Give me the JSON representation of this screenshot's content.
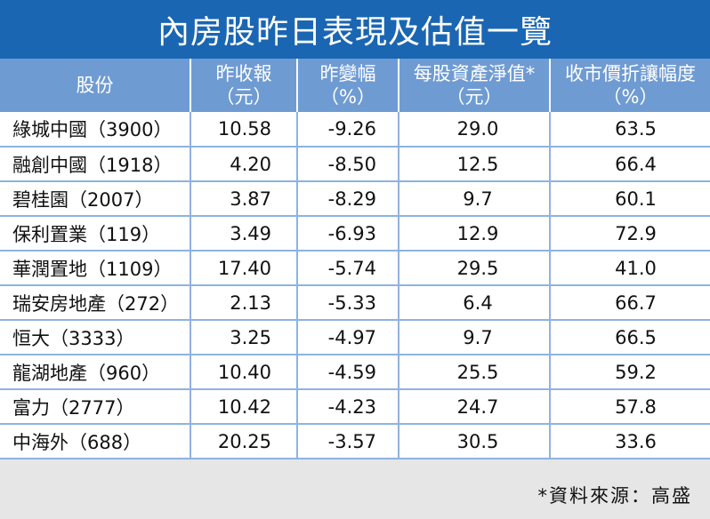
{
  "title": "內房股昨日表現及估值一覽",
  "headers": [
    {
      "line1": "股份",
      "line2": ""
    },
    {
      "line1": "昨收報",
      "line2": "（元）"
    },
    {
      "line1": "昨變幅",
      "line2": "（%）"
    },
    {
      "line1": "每股資產淨值*",
      "line2": "（元）"
    },
    {
      "line1": "收市價折讓幅度",
      "line2": "（%）"
    }
  ],
  "rows": [
    {
      "stock": "綠城中國（3900）",
      "close": "10.58",
      "change": "-9.26",
      "nav": "29.0",
      "discount": "63.5"
    },
    {
      "stock": "融創中國（1918）",
      "close": "4.20",
      "change": "-8.50",
      "nav": "12.5",
      "discount": "66.4"
    },
    {
      "stock": "碧桂園（2007）",
      "close": "3.87",
      "change": "-8.29",
      "nav": "9.7",
      "discount": "60.1"
    },
    {
      "stock": "保利置業（119）",
      "close": "3.49",
      "change": "-6.93",
      "nav": "12.9",
      "discount": "72.9"
    },
    {
      "stock": "華潤置地（1109）",
      "close": "17.40",
      "change": "-5.74",
      "nav": "29.5",
      "discount": "41.0"
    },
    {
      "stock": "瑞安房地產（272）",
      "close": "2.13",
      "change": "-5.33",
      "nav": "6.4",
      "discount": "66.7"
    },
    {
      "stock": "恒大（3333）",
      "close": "3.25",
      "change": "-4.97",
      "nav": "9.7",
      "discount": "66.5"
    },
    {
      "stock": "龍湖地產（960）",
      "close": "10.40",
      "change": "-4.59",
      "nav": "25.5",
      "discount": "59.2"
    },
    {
      "stock": "富力（2777）",
      "close": "10.42",
      "change": "-4.23",
      "nav": "24.7",
      "discount": "57.8"
    },
    {
      "stock": "中海外（688）",
      "close": "20.25",
      "change": "-3.57",
      "nav": "30.5",
      "discount": "33.6"
    }
  ],
  "source": "*資料來源：高盛",
  "colors": {
    "title_bg": "#1a66b2",
    "header_bg": "#6f9bd3",
    "grid_line": "#8db3e2",
    "page_bg": "#e6e6e6"
  }
}
